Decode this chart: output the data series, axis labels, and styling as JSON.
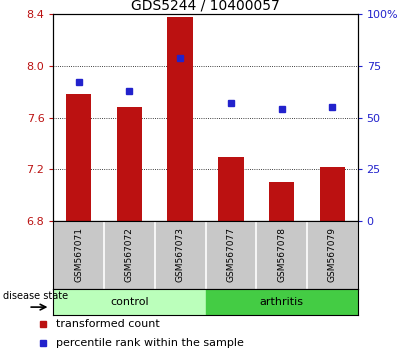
{
  "title": "GDS5244 / 10400057",
  "samples": [
    "GSM567071",
    "GSM567072",
    "GSM567073",
    "GSM567077",
    "GSM567078",
    "GSM567079"
  ],
  "transformed_count": [
    7.78,
    7.68,
    8.38,
    7.3,
    7.1,
    7.22
  ],
  "percentile_rank": [
    67,
    63,
    79,
    57,
    54,
    55
  ],
  "ylim_left": [
    6.8,
    8.4
  ],
  "ylim_right": [
    0,
    100
  ],
  "yticks_left": [
    6.8,
    7.2,
    7.6,
    8.0,
    8.4
  ],
  "yticks_right": [
    0,
    25,
    50,
    75,
    100
  ],
  "bar_color": "#bb1111",
  "dot_color": "#2222cc",
  "control_color": "#bbffbb",
  "arthritis_color": "#44cc44",
  "label_bar": "transformed count",
  "label_dot": "percentile rank within the sample",
  "disease_state_label": "disease state",
  "control_label": "control",
  "arthritis_label": "arthritis",
  "bg_color": "#c8c8c8",
  "title_fontsize": 10,
  "tick_fontsize": 8,
  "sample_fontsize": 6.5,
  "label_fontsize": 8,
  "legend_fontsize": 8
}
